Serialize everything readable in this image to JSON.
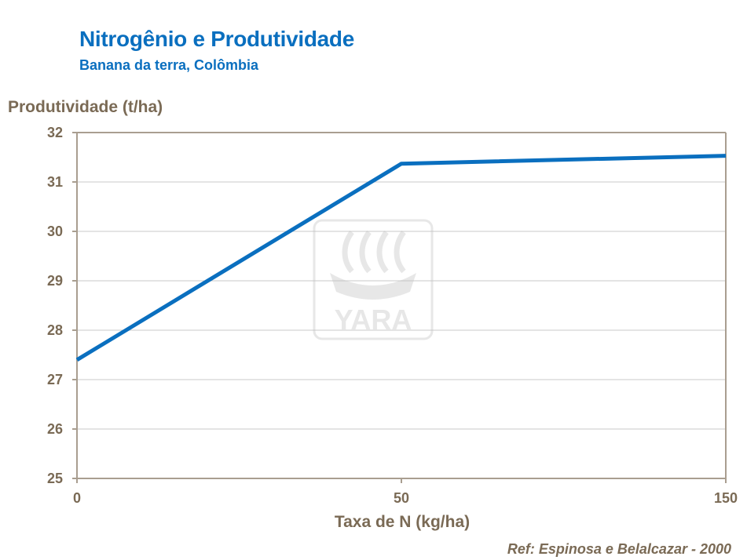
{
  "chart_data": {
    "type": "line",
    "title": "Nitrogênio e Produtividade",
    "subtitle": "Banana da terra, Colômbia",
    "ylabel": "Produtividade (t/ha)",
    "xlabel": "Taxa de N (kg/ha)",
    "reference": "Ref: Espinosa e Belalcazar - 2000",
    "watermark": "YARA",
    "x_tick_labels": [
      "0",
      "50",
      "150"
    ],
    "y_ticks": [
      25,
      26,
      27,
      28,
      29,
      30,
      31,
      32
    ],
    "ylim": [
      25,
      32
    ],
    "grid": true,
    "series": [
      {
        "x_categories": [
          "0",
          "50",
          "150"
        ],
        "values": [
          27.4,
          31.37,
          31.53
        ]
      }
    ],
    "colors": {
      "line": "#0a6fbf",
      "axis": "#a99e90",
      "grid": "#c9c9c9",
      "text": "#7a6a55"
    }
  }
}
